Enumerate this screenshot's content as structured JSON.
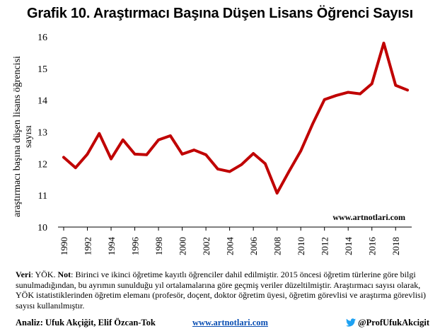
{
  "chart_data": {
    "type": "line",
    "title": "Grafik 10. Araştırmacı Başına Düşen Lisans Öğrenci Sayısı",
    "ylabel_line1": "araştırmacı başına düşen lisans öğrencisi",
    "ylabel_line2": "sayısı",
    "xlabel": "",
    "ylim": [
      10,
      16
    ],
    "yticks": [
      "10",
      "11",
      "12",
      "13",
      "14",
      "15",
      "16"
    ],
    "xlim": [
      1990,
      2019
    ],
    "xticks": [
      "1990",
      "1992",
      "1994",
      "1996",
      "1998",
      "2000",
      "2002",
      "2004",
      "2006",
      "2008",
      "2010",
      "2012",
      "2014",
      "2016",
      "2018"
    ],
    "x": [
      1990,
      1991,
      1992,
      1993,
      1994,
      1995,
      1996,
      1997,
      1998,
      1999,
      2000,
      2001,
      2002,
      2003,
      2004,
      2005,
      2006,
      2007,
      2008,
      2009,
      2010,
      2011,
      2012,
      2013,
      2014,
      2015,
      2016,
      2017,
      2018,
      2019
    ],
    "series": [
      {
        "values": [
          12.2,
          11.87,
          12.3,
          12.95,
          12.15,
          12.75,
          12.3,
          12.28,
          12.75,
          12.88,
          12.3,
          12.43,
          12.28,
          11.83,
          11.75,
          11.97,
          12.32,
          12.0,
          11.07,
          11.75,
          12.4,
          13.25,
          14.02,
          14.15,
          14.25,
          14.2,
          14.52,
          15.8,
          14.47,
          14.32
        ],
        "color": "#c00000"
      }
    ],
    "grid": false,
    "legend": "none",
    "watermark": "www.artnotlari.com"
  },
  "notes": {
    "veri_label": "Veri",
    "veri_text": ": YÖK. ",
    "not_label": "Not",
    "not_text": ": Birinci ve ikinci öğretime kayıtlı öğrenciler dahil edilmiştir. 2015 öncesi öğretim türlerine göre bilgi sunulmadığından, bu ayrımın sunulduğu yıl ortalamalarına göre geçmiş veriler düzeltilmiştir. Araştırmacı sayısı olarak, YÖK istatistiklerinden öğretim elemanı (profesör, doçent, doktor öğretim üyesi, öğretim görevlisi ve araştırma görevlisi) sayısı kullanılmıştır."
  },
  "footer": {
    "analysis": "Analiz: Ufuk Akçiğit, Elif Özcan-Tok",
    "website": "www.artnotlari.com",
    "twitter_handle": "@ProfUfukAkcigit",
    "twitter_icon": "twitter-bird-icon",
    "twitter_color": "#1da1f2"
  }
}
